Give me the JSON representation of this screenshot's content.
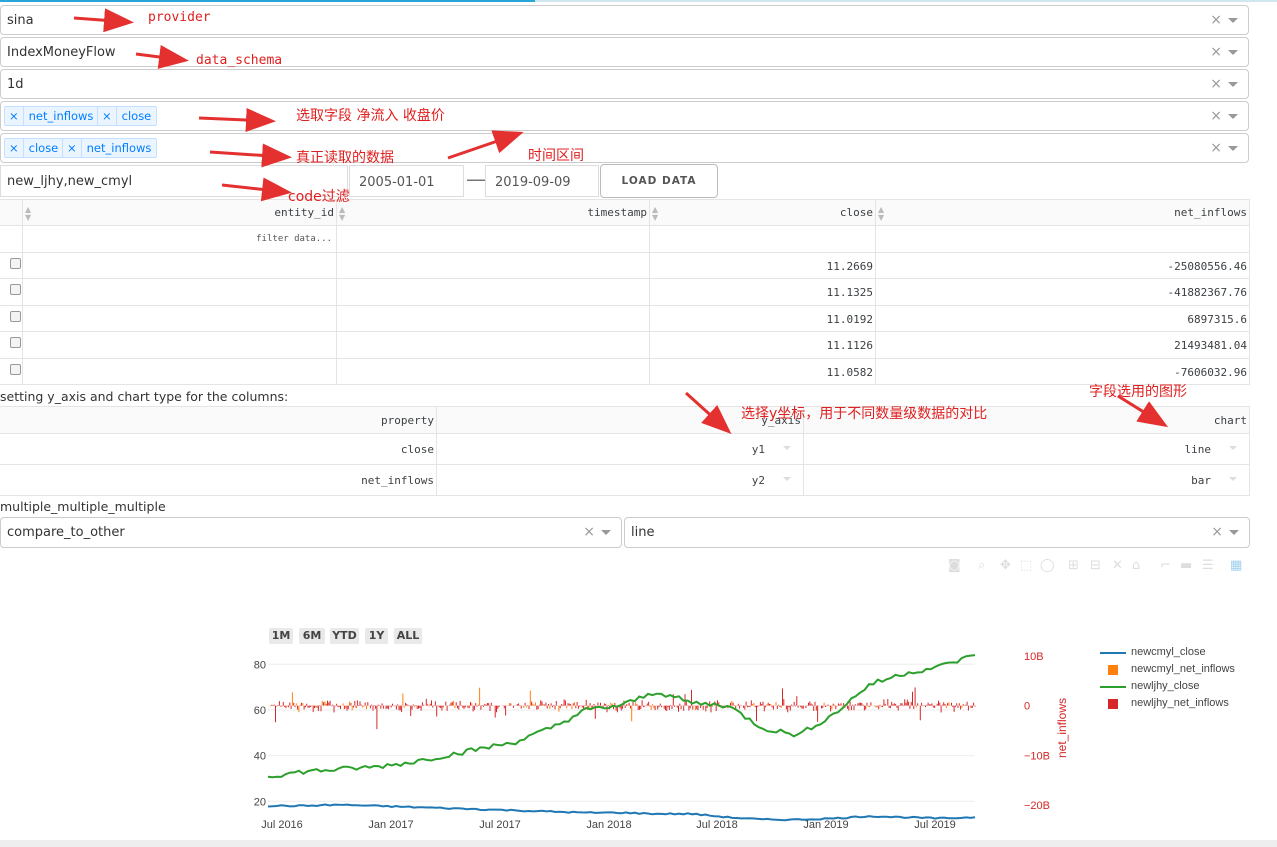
{
  "form": {
    "provider": "sina",
    "data_schema": "IndexMoneyFlow",
    "level": "1d",
    "selected_columns": [
      "net_inflows",
      "close"
    ],
    "read_columns": [
      "close",
      "net_inflows"
    ],
    "codes": "new_ljhy,new_cmyl",
    "start_date": "2005-01-01",
    "end_date": "2019-09-09",
    "load_button": "LOAD DATA",
    "clear_glyph": "×",
    "chip_close_glyph": "×"
  },
  "table": {
    "headers": [
      "entity_id",
      "timestamp",
      "close",
      "net_inflows"
    ],
    "filter_placeholder": "filter data...",
    "rows": [
      {
        "entity_id": "",
        "timestamp": "",
        "close": "11.2669",
        "net_inflows": "-25080556.46"
      },
      {
        "entity_id": "",
        "timestamp": "",
        "close": "11.1325",
        "net_inflows": "-41882367.76"
      },
      {
        "entity_id": "",
        "timestamp": "",
        "close": "11.0192",
        "net_inflows": "6897315.6"
      },
      {
        "entity_id": "",
        "timestamp": "",
        "close": "11.1126",
        "net_inflows": "21493481.04"
      },
      {
        "entity_id": "",
        "timestamp": "",
        "close": "11.0582",
        "net_inflows": "-7606032.96"
      }
    ]
  },
  "axis_settings": {
    "label": "setting y_axis and chart type for the columns:",
    "headers": [
      "property",
      "y_axis",
      "chart"
    ],
    "rows": [
      {
        "property": "close",
        "y_axis": "y1",
        "chart": "line"
      },
      {
        "property": "net_inflows",
        "y_axis": "y2",
        "chart": "bar"
      }
    ]
  },
  "compare": {
    "label": "multiple_multiple_multiple",
    "mode": "compare_to_other",
    "chart_type": "line"
  },
  "annotations": {
    "provider": "provider",
    "data_schema": "data_schema",
    "select_fields": "选取字段 净流入 收盘价",
    "read_data": "真正读取的数据",
    "time_range": "时间区间",
    "code_filter": "code过滤",
    "y_axis_note": "选择y坐标，用于不同数量级数据的对比",
    "chart_note": "字段选用的图形"
  },
  "range_buttons": [
    "1M",
    "6M",
    "YTD",
    "1Y",
    "ALL"
  ],
  "chart_data": {
    "type": "line",
    "x": [
      "2016-06",
      "2016-08",
      "2016-10",
      "2016-12",
      "2017-02",
      "2017-04",
      "2017-06",
      "2017-08",
      "2017-10",
      "2017-12",
      "2018-02",
      "2018-04",
      "2018-06",
      "2018-08",
      "2018-10",
      "2018-12",
      "2019-02",
      "2019-04",
      "2019-06",
      "2019-08",
      "2019-09"
    ],
    "x_tick_labels": [
      "Jul 2016",
      "Jan 2017",
      "Jul 2017",
      "Jan 2018",
      "Jul 2018",
      "Jan 2019",
      "Jul 2019"
    ],
    "y_ticks": [
      20,
      40,
      60,
      80
    ],
    "y2_ticks": [
      "10B",
      "0",
      "−10B",
      "−20B"
    ],
    "y2_label": "net_inflows",
    "ylim": [
      14,
      88
    ],
    "y2lim": [
      -22,
      12
    ],
    "series": [
      {
        "name": "newcmyl_close",
        "axis": "y1",
        "kind": "line",
        "color": "#1f77b4",
        "values": [
          18,
          18,
          18.5,
          18,
          17.5,
          17,
          16.5,
          16,
          15.5,
          15,
          15,
          14.5,
          14.5,
          13,
          12,
          12,
          12.5,
          13.5,
          13,
          12.5,
          13
        ]
      },
      {
        "name": "newcmyl_net_inflows",
        "axis": "y2",
        "kind": "bar",
        "color": "#ff7f0e"
      },
      {
        "name": "newljhy_close",
        "axis": "y1",
        "kind": "line",
        "color": "#2ca02c",
        "values": [
          31,
          33,
          34,
          35,
          37,
          40,
          43,
          46,
          52,
          60,
          62,
          68,
          63,
          62,
          52,
          49,
          58,
          71,
          76,
          79,
          84
        ]
      },
      {
        "name": "newljhy_net_inflows",
        "axis": "y2",
        "kind": "bar",
        "color": "#d62728"
      }
    ],
    "legend_position": "right"
  }
}
